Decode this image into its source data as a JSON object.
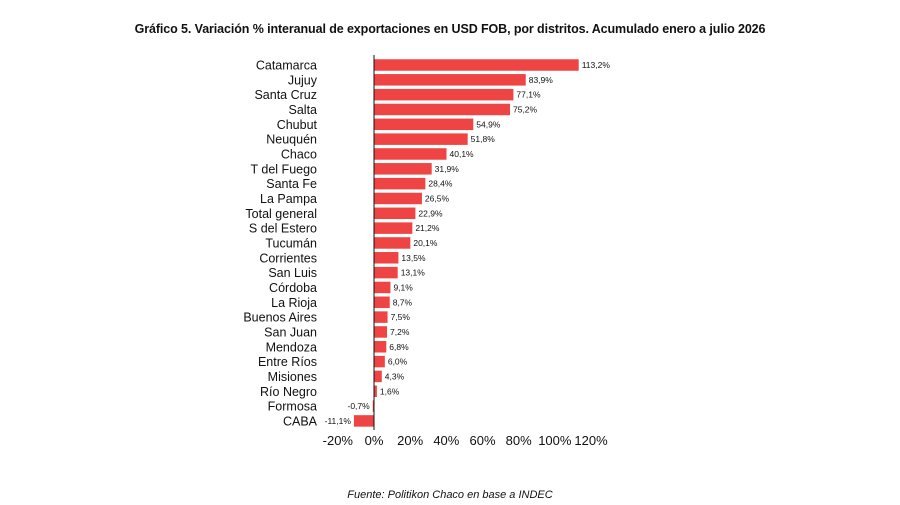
{
  "chart_data": {
    "type": "bar",
    "orientation": "horizontal",
    "title": "Gráfico 5. Variación % interanual de exportaciones en USD FOB, por distritos. Acumulado enero a julio 2026",
    "categories": [
      "Catamarca",
      "Jujuy",
      "Santa Cruz",
      "Salta",
      "Chubut",
      "Neuquén",
      "Chaco",
      "T del Fuego",
      "Santa Fe",
      "La Pampa",
      "Total general",
      "S del Estero",
      "Tucumán",
      "Corrientes",
      "San Luis",
      "Córdoba",
      "La Rioja",
      "Buenos Aires",
      "San Juan",
      "Mendoza",
      "Entre Ríos",
      "Misiones",
      "Río Negro",
      "Formosa",
      "CABA"
    ],
    "values": [
      113.2,
      83.9,
      77.1,
      75.2,
      54.9,
      51.8,
      40.1,
      31.9,
      28.4,
      26.5,
      22.9,
      21.2,
      20.1,
      13.5,
      13.1,
      9.1,
      8.7,
      7.5,
      7.2,
      6.8,
      6.0,
      4.3,
      1.6,
      -0.7,
      -11.1
    ],
    "value_labels": [
      "113,2%",
      "83,9%",
      "77,1%",
      "75,2%",
      "54,9%",
      "51,8%",
      "40,1%",
      "31,9%",
      "28,4%",
      "26,5%",
      "22,9%",
      "21,2%",
      "20,1%",
      "13,5%",
      "13,1%",
      "9,1%",
      "8,7%",
      "7,5%",
      "7,2%",
      "6,8%",
      "6,0%",
      "4,3%",
      "1,6%",
      "-0,7%",
      "-11,1%"
    ],
    "x_ticks": [
      -20,
      0,
      20,
      40,
      60,
      80,
      100,
      120
    ],
    "x_tick_labels": [
      "-20%",
      "0%",
      "20%",
      "40%",
      "60%",
      "80%",
      "100%",
      "120%"
    ],
    "xlim": [
      -20,
      120
    ],
    "grid": false,
    "bar_color": "#ef4444"
  },
  "source": "Fuente: Politikon Chaco en base a INDEC"
}
